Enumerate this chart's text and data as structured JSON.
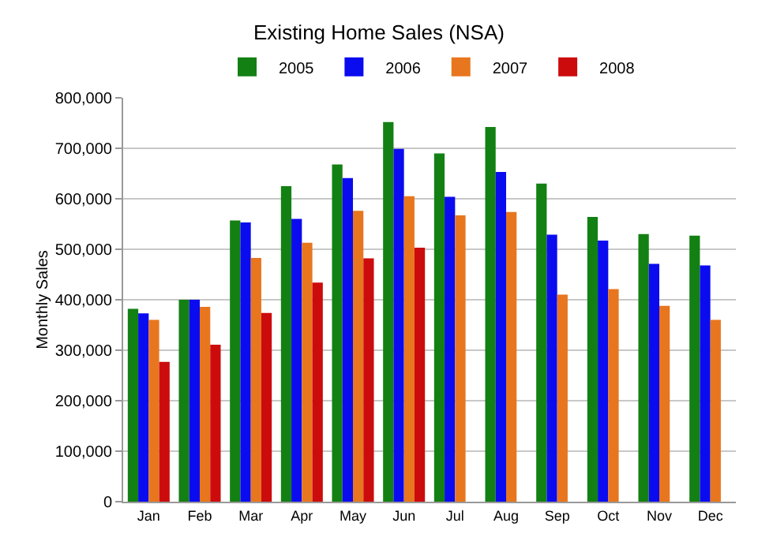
{
  "chart_data": {
    "type": "bar",
    "title": "Existing Home Sales (NSA)",
    "ylabel": "Monthly Sales",
    "categories": [
      "Jan",
      "Feb",
      "Mar",
      "Apr",
      "May",
      "Jun",
      "Jul",
      "Aug",
      "Sep",
      "Oct",
      "Nov",
      "Dec"
    ],
    "series": [
      {
        "name": "2005",
        "color": "#138013",
        "values": [
          382000,
          400000,
          557000,
          625000,
          668000,
          752000,
          690000,
          742000,
          630000,
          564000,
          530000,
          527000
        ]
      },
      {
        "name": "2006",
        "color": "#0b0bf0",
        "values": [
          373000,
          400000,
          553000,
          560000,
          641000,
          699000,
          604000,
          653000,
          529000,
          517000,
          471000,
          468000
        ]
      },
      {
        "name": "2007",
        "color": "#e8761e",
        "values": [
          360000,
          386000,
          483000,
          513000,
          576000,
          605000,
          567000,
          574000,
          410000,
          421000,
          388000,
          360000
        ]
      },
      {
        "name": "2008",
        "color": "#cc0c0c",
        "values": [
          277000,
          311000,
          374000,
          434000,
          482000,
          503000,
          null,
          null,
          null,
          null,
          null,
          null
        ]
      }
    ],
    "ylim": [
      0,
      800000
    ],
    "yticks": [
      {
        "value": 0,
        "label": "0"
      },
      {
        "value": 100000,
        "label": "100,000"
      },
      {
        "value": 200000,
        "label": "200,000"
      },
      {
        "value": 300000,
        "label": "300,000"
      },
      {
        "value": 400000,
        "label": "400,000"
      },
      {
        "value": 500000,
        "label": "500,000"
      },
      {
        "value": 600000,
        "label": "600,000"
      },
      {
        "value": 700000,
        "label": "700,000"
      },
      {
        "value": 800000,
        "label": "800,000"
      }
    ],
    "grid": "y",
    "legend": "top"
  }
}
